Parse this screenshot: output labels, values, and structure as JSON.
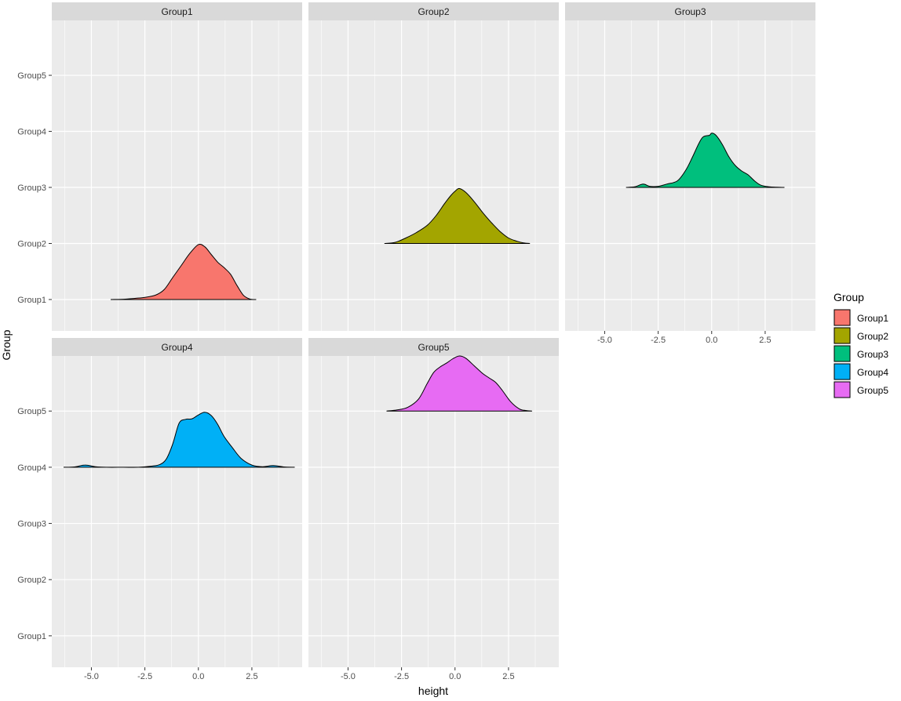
{
  "chart_data": {
    "type": "ridgeline",
    "xlabel": "height",
    "ylabel": "Group",
    "groups": [
      "Group1",
      "Group2",
      "Group3",
      "Group4",
      "Group5"
    ],
    "xlim": [
      -6.85,
      4.85
    ],
    "x_breaks": [
      -5.0,
      -2.5,
      0.0,
      2.5
    ],
    "x_tick_labels": [
      "-5.0",
      "-2.5",
      "0.0",
      "2.5"
    ],
    "ylim": [
      0.44,
      5.98
    ],
    "grid": true,
    "legend": {
      "title": "Group",
      "position": "right",
      "labels": [
        "Group1",
        "Group2",
        "Group3",
        "Group4",
        "Group5"
      ]
    },
    "colors": [
      "#F8766D",
      "#A3A500",
      "#00BF7D",
      "#00B0F6",
      "#E76BF3"
    ],
    "panel_background": "#EBEBEB",
    "strip_background": "#D9D9D9",
    "gridline_color": "#FFFFFF",
    "outline_color": "#000000",
    "panels": [
      {
        "strip": "Group1",
        "baseline": 1,
        "x": [
          -4.1,
          -3.6,
          -3.0,
          -2.5,
          -2.0,
          -1.6,
          -1.2,
          -0.8,
          -0.4,
          0.0,
          0.3,
          0.6,
          0.9,
          1.2,
          1.5,
          1.8,
          2.1,
          2.4,
          2.7
        ],
        "density": [
          0.0,
          0.004,
          0.02,
          0.04,
          0.08,
          0.18,
          0.4,
          0.62,
          0.84,
          1.0,
          0.96,
          0.82,
          0.68,
          0.58,
          0.46,
          0.26,
          0.08,
          0.01,
          0.0
        ]
      },
      {
        "strip": "Group2",
        "baseline": 2,
        "x": [
          -3.3,
          -2.8,
          -2.3,
          -1.8,
          -1.3,
          -0.9,
          -0.5,
          -0.2,
          0.0,
          0.2,
          0.5,
          0.9,
          1.3,
          1.7,
          2.1,
          2.5,
          2.9,
          3.2,
          3.5
        ],
        "density": [
          0.0,
          0.02,
          0.1,
          0.2,
          0.33,
          0.5,
          0.72,
          0.87,
          0.95,
          1.0,
          0.93,
          0.76,
          0.56,
          0.38,
          0.22,
          0.1,
          0.04,
          0.01,
          0.0
        ]
      },
      {
        "strip": "Group3",
        "baseline": 3,
        "x": [
          -4.0,
          -3.6,
          -3.2,
          -2.9,
          -2.5,
          -2.1,
          -1.6,
          -1.2,
          -0.9,
          -0.6,
          -0.4,
          -0.1,
          0.0,
          0.2,
          0.5,
          0.8,
          1.1,
          1.4,
          1.7,
          2.0,
          2.3,
          2.7,
          3.0,
          3.4
        ],
        "density": [
          0.0,
          0.01,
          0.06,
          0.02,
          0.02,
          0.06,
          0.12,
          0.32,
          0.55,
          0.8,
          0.92,
          0.95,
          0.99,
          0.95,
          0.78,
          0.56,
          0.4,
          0.3,
          0.23,
          0.12,
          0.04,
          0.01,
          0.004,
          0.0
        ]
      },
      {
        "strip": "Group4",
        "baseline": 4,
        "x": [
          -6.3,
          -5.8,
          -5.3,
          -4.8,
          -4.3,
          -3.5,
          -2.8,
          -2.2,
          -1.8,
          -1.5,
          -1.2,
          -0.9,
          -0.6,
          -0.3,
          0.0,
          0.3,
          0.6,
          0.9,
          1.2,
          1.6,
          2.0,
          2.5,
          3.0,
          3.5,
          4.0,
          4.5
        ],
        "density": [
          0.0,
          0.005,
          0.04,
          0.01,
          0.0,
          0.0,
          0.0,
          0.02,
          0.05,
          0.15,
          0.42,
          0.8,
          0.87,
          0.88,
          0.95,
          1.0,
          0.94,
          0.78,
          0.56,
          0.35,
          0.16,
          0.04,
          0.01,
          0.03,
          0.005,
          0.0
        ]
      },
      {
        "strip": "Group5",
        "baseline": 5,
        "x": [
          -3.2,
          -2.7,
          -2.2,
          -1.7,
          -1.3,
          -1.0,
          -0.7,
          -0.4,
          -0.1,
          0.2,
          0.5,
          0.9,
          1.3,
          1.6,
          1.9,
          2.2,
          2.6,
          3.0,
          3.3,
          3.6
        ],
        "density": [
          0.0,
          0.02,
          0.07,
          0.22,
          0.5,
          0.7,
          0.8,
          0.87,
          0.95,
          1.0,
          0.96,
          0.82,
          0.68,
          0.6,
          0.52,
          0.38,
          0.17,
          0.04,
          0.01,
          0.0
        ]
      }
    ]
  }
}
